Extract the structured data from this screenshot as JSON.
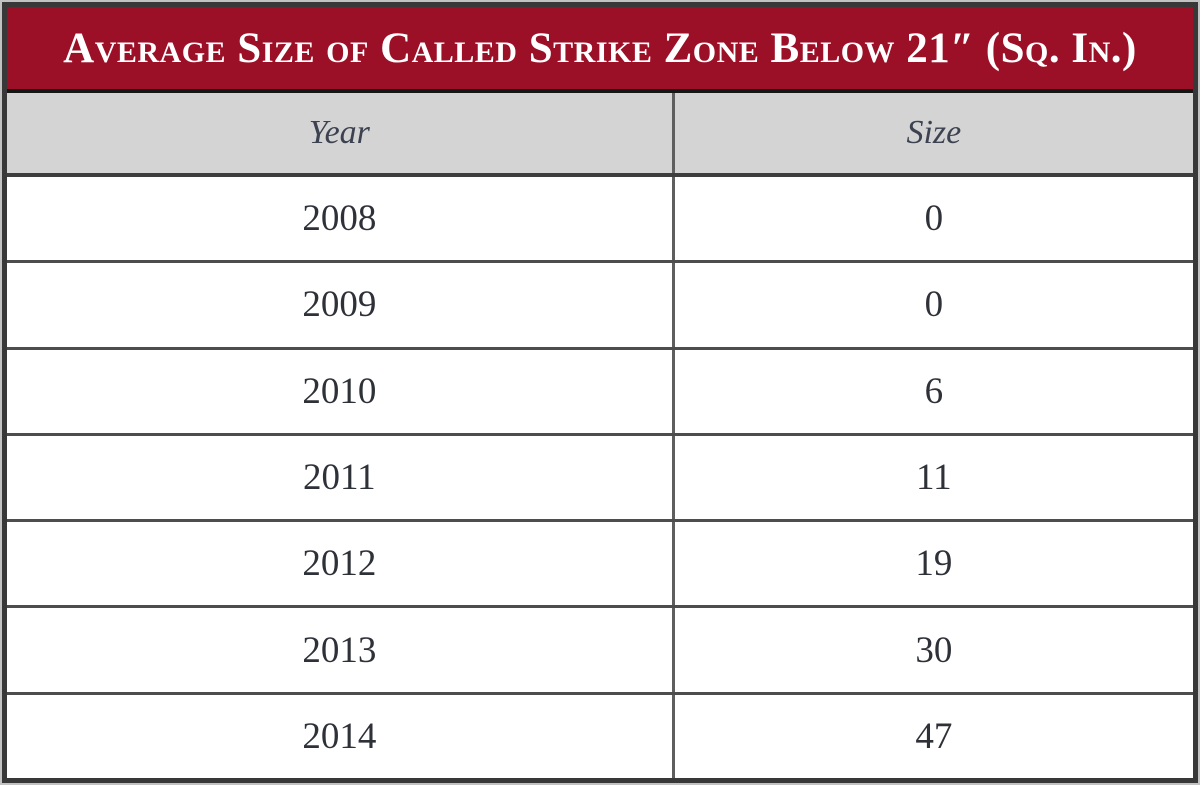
{
  "table": {
    "title": "Average Size of Called Strike Zone Below 21″ (Sq. In.)",
    "columns": [
      "Year",
      "Size"
    ],
    "rows": [
      [
        "2008",
        "0"
      ],
      [
        "2009",
        "0"
      ],
      [
        "2010",
        "6"
      ],
      [
        "2011",
        "11"
      ],
      [
        "2012",
        "19"
      ],
      [
        "2013",
        "30"
      ],
      [
        "2014",
        "47"
      ]
    ]
  },
  "colors": {
    "title_background": "#9B0F27",
    "title_text": "#FFFFFF",
    "header_background": "#D4D4D4",
    "row_background": "#FFFFFF",
    "border_dark": "#383838",
    "text_dark": "#2E3138"
  },
  "chart_data": {
    "type": "table",
    "title": "Average Size of Called Strike Zone Below 21″ (Sq. In.)",
    "columns": [
      "Year",
      "Size"
    ],
    "categories": [
      "2008",
      "2009",
      "2010",
      "2011",
      "2012",
      "2013",
      "2014"
    ],
    "values": [
      0,
      0,
      6,
      11,
      19,
      30,
      47
    ],
    "units": "square inches",
    "layout": "single table, 2 centered columns, maroon title banner, gray italic header row"
  }
}
